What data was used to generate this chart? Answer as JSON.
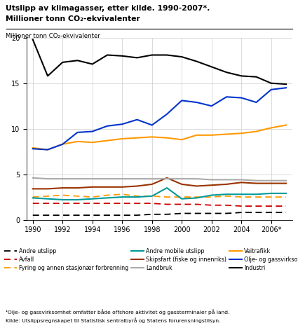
{
  "years": [
    1990,
    1991,
    1992,
    1993,
    1994,
    1995,
    1996,
    1997,
    1998,
    1999,
    2000,
    2001,
    2002,
    2003,
    2004,
    2005,
    2006,
    2007
  ],
  "industri": [
    19.8,
    15.8,
    17.3,
    17.5,
    17.1,
    18.1,
    18.0,
    17.8,
    18.1,
    18.1,
    17.9,
    17.4,
    16.8,
    16.2,
    15.8,
    15.7,
    15.0,
    14.9
  ],
  "olje_gass": [
    7.8,
    7.7,
    8.3,
    9.6,
    9.7,
    10.3,
    10.5,
    11.0,
    10.4,
    11.6,
    13.1,
    12.9,
    12.5,
    13.5,
    13.4,
    12.9,
    14.3,
    14.5
  ],
  "veitrafikk": [
    7.9,
    7.7,
    8.3,
    8.6,
    8.5,
    8.7,
    8.9,
    9.0,
    9.1,
    9.0,
    8.8,
    9.3,
    9.3,
    9.4,
    9.5,
    9.7,
    10.1,
    10.4
  ],
  "landbruk": [
    4.6,
    4.5,
    4.5,
    4.5,
    4.5,
    4.5,
    4.5,
    4.5,
    4.5,
    4.5,
    4.5,
    4.5,
    4.4,
    4.4,
    4.4,
    4.3,
    4.3,
    4.3
  ],
  "skipsfart": [
    3.4,
    3.4,
    3.5,
    3.5,
    3.6,
    3.6,
    3.6,
    3.7,
    3.9,
    4.6,
    3.9,
    3.7,
    3.8,
    3.9,
    4.1,
    4.0,
    4.0,
    4.0
  ],
  "andre_mobile": [
    2.4,
    2.3,
    2.2,
    2.2,
    2.3,
    2.4,
    2.5,
    2.5,
    2.6,
    3.5,
    2.3,
    2.4,
    2.7,
    2.8,
    2.8,
    2.8,
    2.9,
    2.9
  ],
  "fyring": [
    2.5,
    2.6,
    2.7,
    2.6,
    2.5,
    2.7,
    2.8,
    2.6,
    2.6,
    2.5,
    2.5,
    2.5,
    2.5,
    2.6,
    2.5,
    2.5,
    2.5,
    2.5
  ],
  "avfall": [
    1.8,
    1.8,
    1.8,
    1.8,
    1.8,
    1.8,
    1.8,
    1.8,
    1.8,
    1.7,
    1.7,
    1.7,
    1.6,
    1.6,
    1.5,
    1.5,
    1.5,
    1.5
  ],
  "andre_utslipp": [
    0.5,
    0.5,
    0.5,
    0.5,
    0.5,
    0.5,
    0.5,
    0.5,
    0.6,
    0.6,
    0.7,
    0.7,
    0.7,
    0.7,
    0.8,
    0.8,
    0.8,
    0.8
  ],
  "title_line1": "Utslipp av klimagasser, etter kilde. 1990-2007*.",
  "title_line2": "Millioner tonn CO₂-ekvivalenter",
  "axis_ylabel": "Millioner tonn CO₂-ekvivalenter",
  "footnote1": "¹Olje- og gassvirksomhet omfatter både offshore aktivitet og gassterminaler på land.",
  "footnote2": "Kilde: Utslippsregnskapet til Statistisk sentralbyrå og Statens forurensningstilsyn.",
  "ylim": [
    0,
    20
  ],
  "yticks": [
    0,
    5,
    10,
    15,
    20
  ]
}
